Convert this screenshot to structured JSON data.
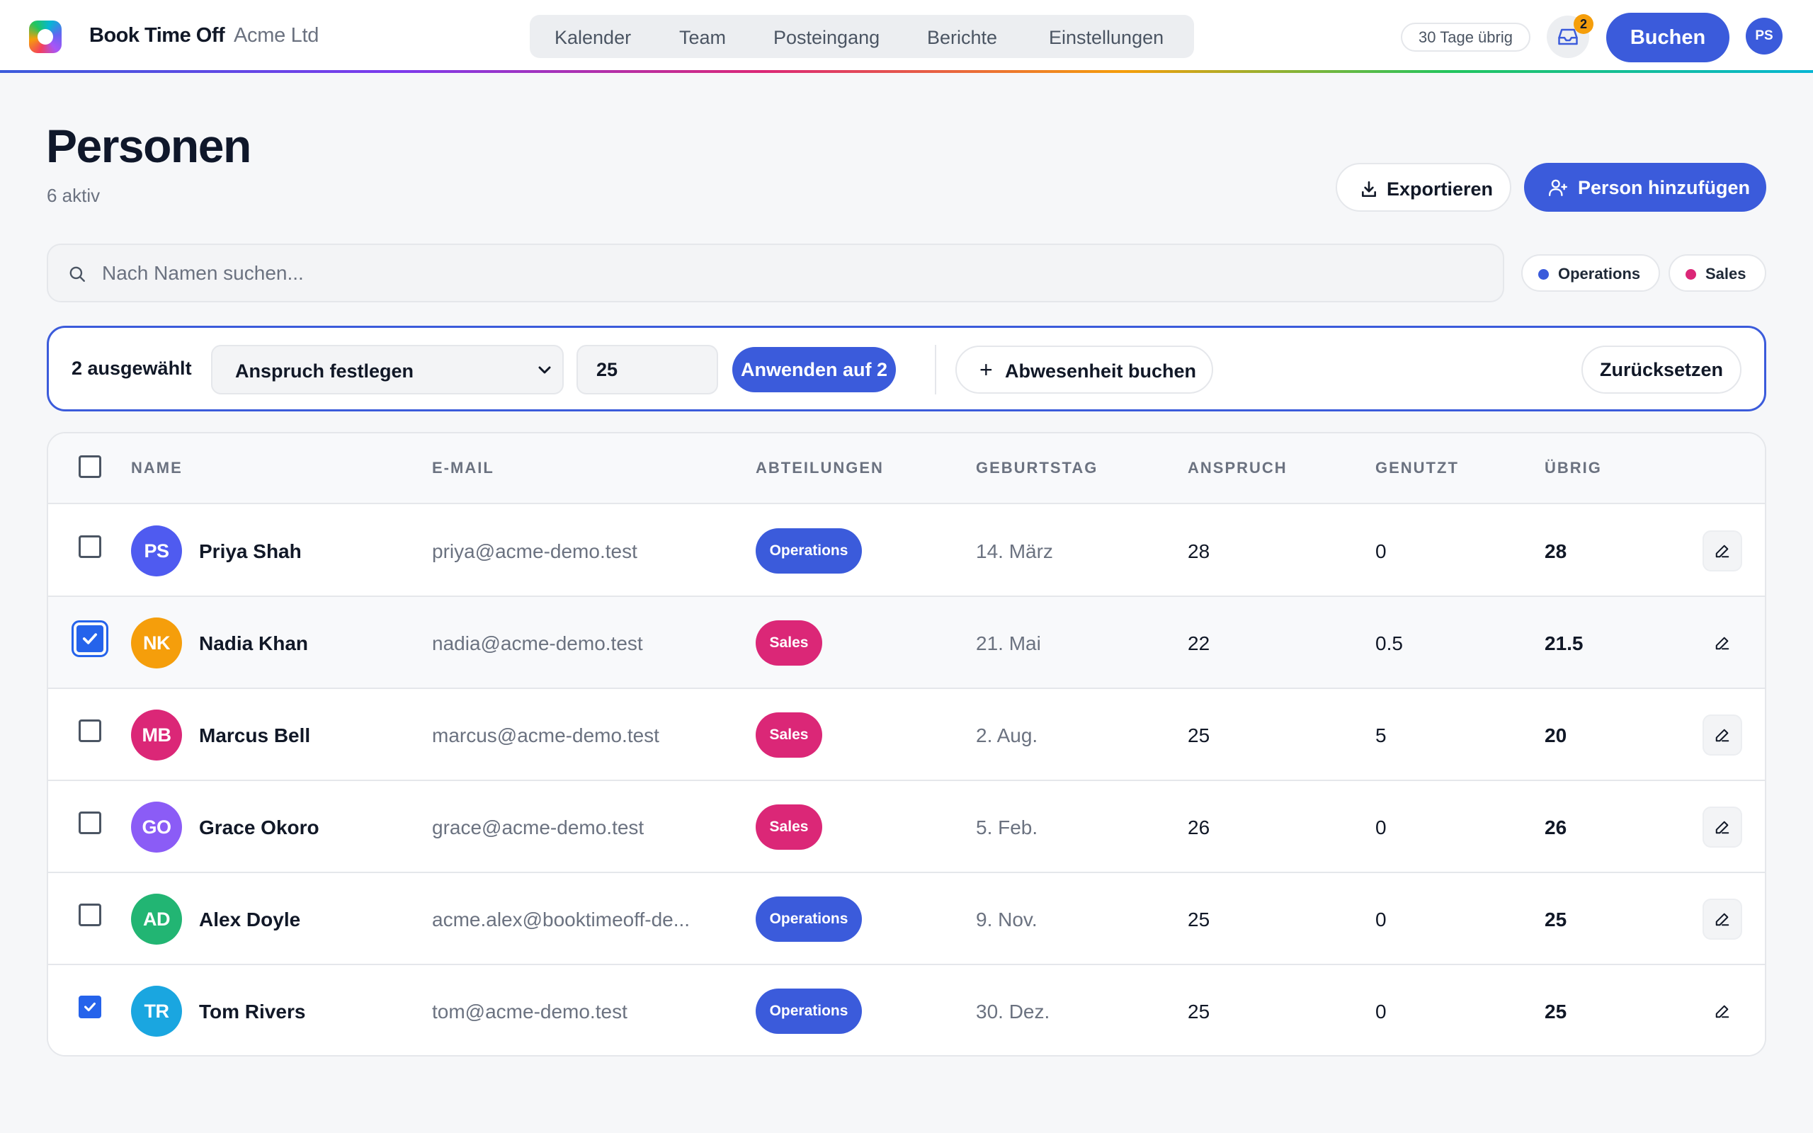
{
  "app": {
    "brand": "Book Time Off",
    "org": "Acme Ltd"
  },
  "nav": {
    "items": [
      "Kalender",
      "Team",
      "Posteingang",
      "Berichte",
      "Einstellungen"
    ]
  },
  "header": {
    "days_left": "30 Tage übrig",
    "inbox_count": "2",
    "book_label": "Buchen",
    "user_initials": "PS"
  },
  "page": {
    "title": "Personen",
    "subtitle": "6 aktiv",
    "export_label": "Exportieren",
    "add_label": "Person hinzufügen"
  },
  "search": {
    "placeholder": "Nach Namen suchen...",
    "value": ""
  },
  "filters": [
    {
      "label": "Operations",
      "color": "#3b5bdb"
    },
    {
      "label": "Sales",
      "color": "#db2777"
    }
  ],
  "bulk": {
    "selected_label": "2 ausgewählt",
    "action_selected": "Anspruch festlegen",
    "amount_value": "25",
    "apply_label": "Anwenden auf 2",
    "book_absence_label": "Abwesenheit buchen",
    "reset_label": "Zurücksetzen"
  },
  "table": {
    "columns": [
      "NAME",
      "E-MAIL",
      "ABTEILUNGEN",
      "GEBURTSTAG",
      "ANSPRUCH",
      "GENUTZT",
      "ÜBRIG"
    ],
    "rows": [
      {
        "initials": "PS",
        "avatar_color": "#4f5bf0",
        "name": "Priya Shah",
        "email": "priya@acme-demo.test",
        "dept": "Operations",
        "birthday": "14. März",
        "entitlement": "28",
        "used": "0",
        "remaining": "28",
        "checked": false
      },
      {
        "initials": "NK",
        "avatar_color": "#f59e0b",
        "name": "Nadia Khan",
        "email": "nadia@acme-demo.test",
        "dept": "Sales",
        "birthday": "21. Mai",
        "entitlement": "22",
        "used": "0.5",
        "remaining": "21.5",
        "checked": true
      },
      {
        "initials": "MB",
        "avatar_color": "#db2777",
        "name": "Marcus Bell",
        "email": "marcus@acme-demo.test",
        "dept": "Sales",
        "birthday": "2. Aug.",
        "entitlement": "25",
        "used": "5",
        "remaining": "20",
        "checked": false
      },
      {
        "initials": "GO",
        "avatar_color": "#8b5cf6",
        "name": "Grace Okoro",
        "email": "grace@acme-demo.test",
        "dept": "Sales",
        "birthday": "5. Feb.",
        "entitlement": "26",
        "used": "0",
        "remaining": "26",
        "checked": false
      },
      {
        "initials": "AD",
        "avatar_color": "#22b573",
        "name": "Alex Doyle",
        "email": "acme.alex@booktimeoff-de...",
        "dept": "Operations",
        "birthday": "9. Nov.",
        "entitlement": "25",
        "used": "0",
        "remaining": "25",
        "checked": false
      },
      {
        "initials": "TR",
        "avatar_color": "#1aa6e0",
        "name": "Tom Rivers",
        "email": "tom@acme-demo.test",
        "dept": "Operations",
        "birthday": "30. Dez.",
        "entitlement": "25",
        "used": "0",
        "remaining": "25",
        "checked": true
      }
    ]
  },
  "icons": {
    "inbox": "inbox-icon",
    "export": "download-icon",
    "add_person": "user-plus-icon",
    "search": "search-icon",
    "edit": "pencil-icon",
    "select": "chevron-down-icon",
    "plus": "plus-icon",
    "check": "check-icon"
  }
}
